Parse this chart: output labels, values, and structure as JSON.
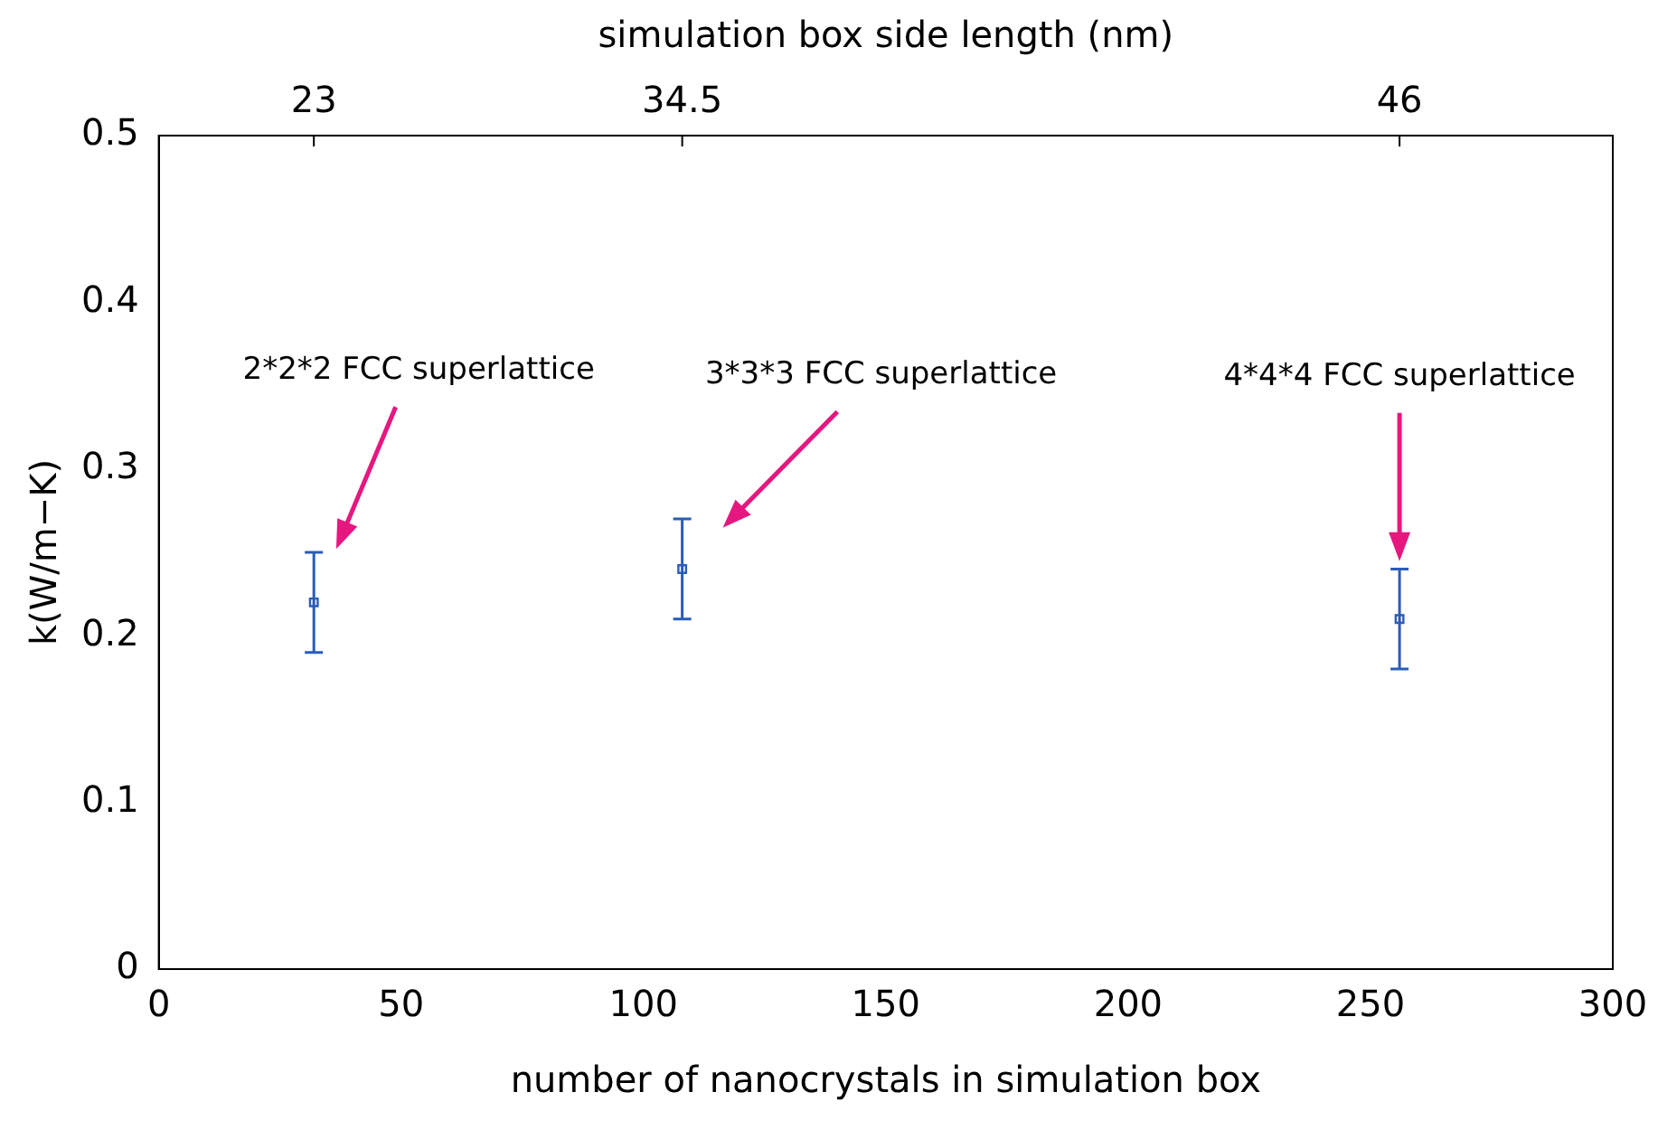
{
  "chart_data": {
    "type": "scatter",
    "xlabel": "number of nanocrystals in simulation box",
    "ylabel": "k(W/m−K)",
    "x2label": "simulation box side length (nm)",
    "x": [
      32,
      108,
      256
    ],
    "series": [
      {
        "color": "#2a5cb8",
        "values": [
          0.22,
          0.24,
          0.21
        ],
        "errors": [
          0.03,
          0.03,
          0.03
        ]
      }
    ],
    "xlim": [
      0,
      300
    ],
    "xticks": [
      0,
      50,
      100,
      150,
      200,
      250,
      300
    ],
    "ylim": [
      0,
      0.5
    ],
    "yticks": [
      0,
      0.1,
      0.2,
      0.3,
      0.4,
      0.5
    ],
    "marker": "square",
    "legend": false,
    "grid": false,
    "annotations": [
      "2*2*2 FCC superlattice",
      "3*3*3 FCC superlattice",
      "4*4*4 FCC superlattice",
      {
        "text": "23",
        "x": 32
      },
      {
        "text": "34.5",
        "x": 108
      },
      {
        "text": "46",
        "x": 256
      }
    ]
  }
}
